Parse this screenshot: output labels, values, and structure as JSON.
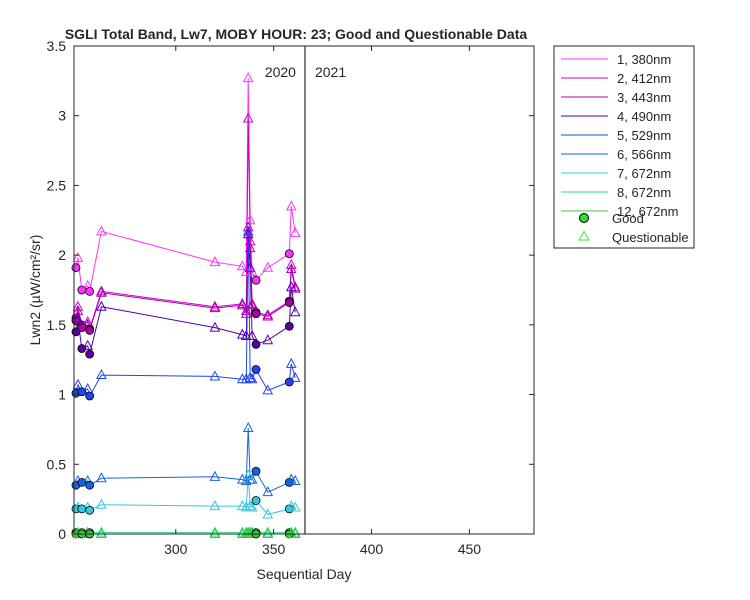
{
  "chart_data": {
    "type": "line",
    "title": "SGLI Total Band, Lw7, MOBY HOUR: 23;  Good and Questionable Data",
    "xlabel": "Sequential Day",
    "ylabel": "Lwn2 (µW/cm²/sr)",
    "xlim": [
      248,
      483
    ],
    "ylim": [
      0,
      3.5
    ],
    "xticks": [
      300,
      350,
      400,
      450
    ],
    "yticks": [
      0,
      0.5,
      1,
      1.5,
      2,
      2.5,
      3,
      3.5
    ],
    "ytick_labels": [
      "0",
      "0.5",
      "1",
      "1.5",
      "2",
      "2.5",
      "3",
      "3.5"
    ],
    "year_divider_x": 366,
    "year_labels": [
      "2020",
      "2021"
    ],
    "grid": false,
    "legend_position": "outside-top-right",
    "legend_marker_labels": [
      "Good",
      "Questionable"
    ],
    "x": [
      249,
      250,
      252,
      255,
      256,
      262,
      320,
      334,
      336,
      337,
      338,
      339,
      341,
      347,
      358,
      359,
      361
    ],
    "series": [
      {
        "name": "1, 380nm",
        "color": "#ff33ff",
        "values": [
          1.91,
          1.98,
          1.75,
          1.78,
          1.74,
          2.17,
          1.95,
          1.92,
          1.88,
          3.27,
          2.25,
          1.88,
          1.82,
          1.91,
          2.01,
          2.35,
          2.16
        ],
        "good": [
          true,
          false,
          true,
          false,
          true,
          false,
          false,
          false,
          false,
          false,
          false,
          false,
          true,
          false,
          true,
          false,
          false
        ]
      },
      {
        "name": "2, 412nm",
        "color": "#cc00cc",
        "values": [
          1.55,
          1.63,
          1.5,
          1.52,
          1.47,
          1.74,
          1.63,
          1.65,
          1.6,
          2.98,
          2.1,
          1.65,
          1.59,
          1.57,
          1.67,
          1.93,
          1.77
        ],
        "good": [
          true,
          false,
          true,
          false,
          true,
          false,
          false,
          false,
          false,
          false,
          false,
          false,
          true,
          false,
          true,
          false,
          false
        ]
      },
      {
        "name": "3, 443nm",
        "color": "#aa00aa",
        "values": [
          1.53,
          1.6,
          1.48,
          1.5,
          1.46,
          1.73,
          1.62,
          1.64,
          1.58,
          2.2,
          2.05,
          1.64,
          1.58,
          1.56,
          1.66,
          1.9,
          1.76
        ],
        "good": [
          true,
          false,
          true,
          false,
          true,
          false,
          false,
          false,
          false,
          false,
          false,
          false,
          true,
          false,
          true,
          false,
          false
        ]
      },
      {
        "name": "4, 490nm",
        "color": "#5500aa",
        "values": [
          1.45,
          1.54,
          1.33,
          1.35,
          1.29,
          1.63,
          1.48,
          1.43,
          1.42,
          2.15,
          1.91,
          1.42,
          1.36,
          1.39,
          1.49,
          1.77,
          1.59
        ],
        "good": [
          true,
          false,
          true,
          false,
          true,
          false,
          false,
          false,
          false,
          false,
          false,
          false,
          true,
          false,
          true,
          false,
          false
        ]
      },
      {
        "name": "5, 529nm",
        "color": "#2244ee",
        "values": [
          1.01,
          1.07,
          1.02,
          1.04,
          0.99,
          1.14,
          1.13,
          1.11,
          1.11,
          2.17,
          1.12,
          1.11,
          1.18,
          1.03,
          1.09,
          1.22,
          1.12
        ],
        "good": [
          true,
          false,
          true,
          false,
          true,
          false,
          false,
          false,
          false,
          false,
          false,
          false,
          true,
          false,
          true,
          false,
          false
        ]
      },
      {
        "name": "6, 566nm",
        "color": "#1166dd",
        "values": [
          0.35,
          0.38,
          0.37,
          0.38,
          0.35,
          0.4,
          0.41,
          0.39,
          0.38,
          0.76,
          0.39,
          0.39,
          0.45,
          0.3,
          0.37,
          0.39,
          0.38
        ],
        "good": [
          true,
          false,
          true,
          false,
          true,
          false,
          false,
          false,
          false,
          false,
          false,
          false,
          true,
          false,
          true,
          false,
          false
        ]
      },
      {
        "name": "7, 672nm",
        "color": "#33c9dd",
        "values": [
          0.18,
          0.19,
          0.18,
          0.19,
          0.17,
          0.21,
          0.2,
          0.2,
          0.19,
          0.42,
          0.2,
          0.19,
          0.24,
          0.14,
          0.18,
          0.2,
          0.19
        ],
        "good": [
          true,
          false,
          true,
          false,
          true,
          false,
          false,
          false,
          false,
          false,
          false,
          false,
          true,
          false,
          true,
          false,
          false
        ]
      },
      {
        "name": "8, 672nm",
        "color": "#22dd88",
        "values": [
          0.01,
          0.01,
          0.01,
          0.01,
          0.01,
          0.01,
          0.01,
          0.01,
          0.01,
          0.01,
          0.01,
          0.01,
          0.01,
          0.01,
          0.01,
          0.01,
          0.01
        ],
        "good": [
          true,
          false,
          true,
          false,
          true,
          false,
          false,
          false,
          false,
          false,
          false,
          false,
          true,
          false,
          true,
          false,
          false
        ]
      },
      {
        "name": "12, 672nm",
        "color": "#33cc33",
        "values": [
          0.0,
          0.0,
          0.0,
          0.0,
          0.0,
          0.0,
          0.0,
          0.0,
          0.0,
          0.0,
          0.0,
          0.0,
          0.0,
          0.0,
          0.0,
          0.0,
          0.0
        ],
        "good": [
          true,
          false,
          true,
          false,
          true,
          false,
          false,
          false,
          false,
          false,
          false,
          false,
          true,
          false,
          true,
          false,
          false
        ]
      }
    ]
  }
}
